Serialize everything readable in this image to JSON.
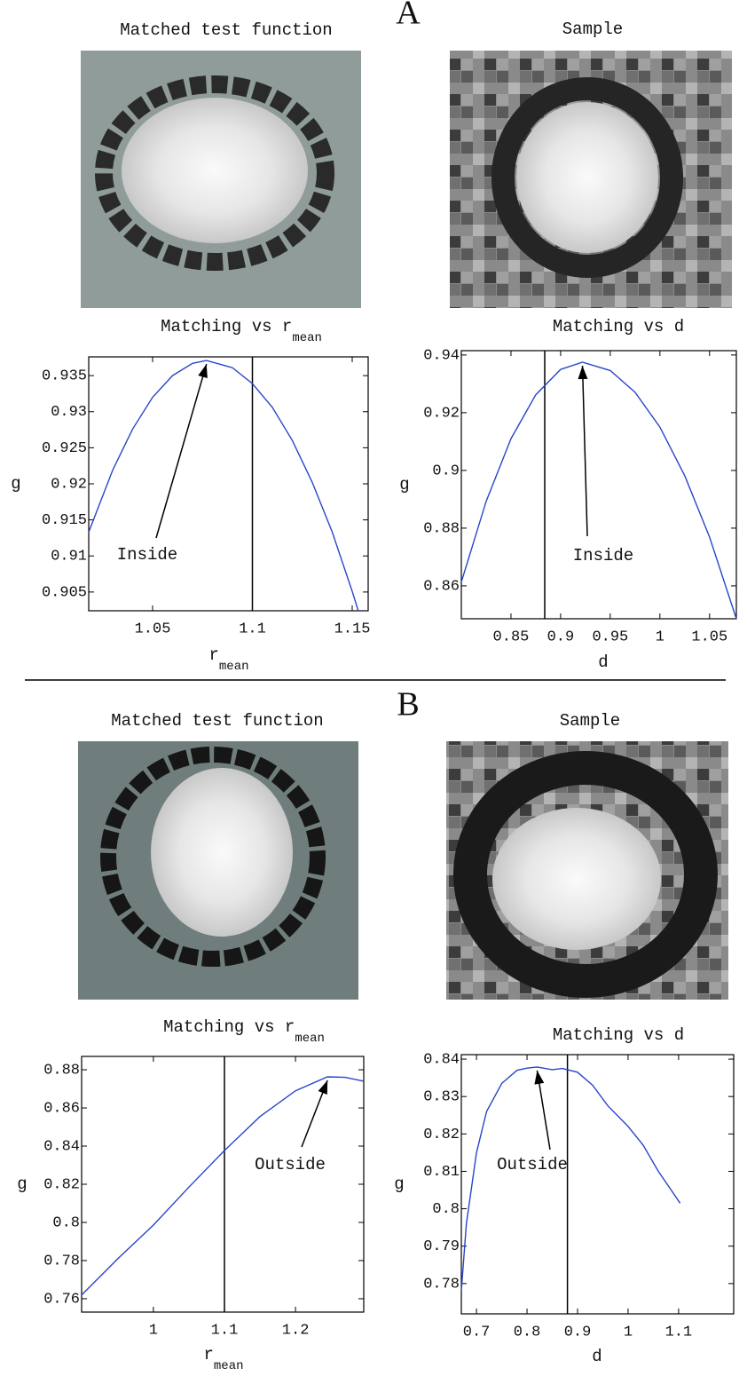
{
  "panels": [
    {
      "label": "A",
      "images": [
        {
          "title": "Matched test function"
        },
        {
          "title": "Sample"
        }
      ]
    },
    {
      "label": "B",
      "images": [
        {
          "title": "Matched test function"
        },
        {
          "title": "Sample"
        }
      ]
    }
  ],
  "chart_data": [
    {
      "type": "line",
      "title": "Matching vs r",
      "title_sub": "mean",
      "xlabel": "r",
      "xlabel_sub": "mean",
      "ylabel": "g",
      "xlim": [
        1.018,
        1.158
      ],
      "ylim": [
        0.9024,
        0.9376
      ],
      "xticks": [
        1.05,
        1.1,
        1.15
      ],
      "yticks": [
        0.905,
        0.91,
        0.915,
        0.92,
        0.925,
        0.93,
        0.935
      ],
      "vline": 1.1,
      "annotation": "Inside",
      "color": "#2a45c8",
      "x": [
        1.018,
        1.03,
        1.04,
        1.05,
        1.06,
        1.07,
        1.077,
        1.09,
        1.1,
        1.11,
        1.12,
        1.13,
        1.14,
        1.15,
        1.153
      ],
      "values": [
        0.9133,
        0.9219,
        0.9276,
        0.932,
        0.935,
        0.9367,
        0.9371,
        0.9361,
        0.9339,
        0.9306,
        0.926,
        0.9202,
        0.9133,
        0.9051,
        0.9024
      ]
    },
    {
      "type": "line",
      "title": "Matching vs d",
      "xlabel": "d",
      "ylabel": "g",
      "xlim": [
        0.8,
        1.077
      ],
      "ylim": [
        0.8486,
        0.9415
      ],
      "xticks": [
        0.85,
        0.9,
        0.95,
        1,
        1.05
      ],
      "yticks": [
        0.86,
        0.88,
        0.9,
        0.92,
        0.94
      ],
      "vline": 0.884,
      "annotation": "Inside",
      "color": "#2a45c8",
      "x": [
        0.8,
        0.825,
        0.85,
        0.875,
        0.9,
        0.922,
        0.95,
        0.975,
        1.0,
        1.025,
        1.05,
        1.077
      ],
      "values": [
        0.8613,
        0.8893,
        0.911,
        0.9262,
        0.935,
        0.9375,
        0.9346,
        0.9271,
        0.915,
        0.8982,
        0.8769,
        0.8486
      ]
    },
    {
      "type": "line",
      "title": "Matching vs r",
      "title_sub": "mean",
      "xlabel": "r",
      "xlabel_sub": "mean",
      "ylabel": "g",
      "xlim": [
        0.899,
        1.296
      ],
      "ylim": [
        0.753,
        0.887
      ],
      "xticks": [
        1,
        1.1,
        1.2
      ],
      "yticks": [
        0.76,
        0.78,
        0.8,
        0.82,
        0.84,
        0.86,
        0.88
      ],
      "vline": 1.1,
      "annotation": "Outside",
      "color": "#2a45c8",
      "x": [
        0.899,
        0.95,
        1.0,
        1.05,
        1.1,
        1.15,
        1.2,
        1.245,
        1.27,
        1.296
      ],
      "values": [
        0.762,
        0.781,
        0.7986,
        0.8185,
        0.8377,
        0.8555,
        0.869,
        0.8763,
        0.876,
        0.874
      ]
    },
    {
      "type": "line",
      "title": "Matching vs d",
      "xlabel": "d",
      "ylabel": "g",
      "xlim": [
        0.67,
        1.209
      ],
      "ylim": [
        0.7719,
        0.8412
      ],
      "xticks": [
        0.7,
        0.8,
        0.9,
        1,
        1.1
      ],
      "yticks": [
        0.78,
        0.79,
        0.8,
        0.81,
        0.82,
        0.83,
        0.84
      ],
      "vline": 0.88,
      "annotation": "Outside",
      "color": "#2a45c8",
      "x": [
        0.67,
        0.68,
        0.7,
        0.72,
        0.75,
        0.78,
        0.8,
        0.82,
        0.85,
        0.87,
        0.9,
        0.93,
        0.96,
        1.0,
        1.03,
        1.06,
        1.103
      ],
      "values": [
        0.7781,
        0.796,
        0.815,
        0.826,
        0.8335,
        0.837,
        0.8376,
        0.8379,
        0.8372,
        0.8375,
        0.8365,
        0.833,
        0.8275,
        0.822,
        0.817,
        0.81,
        0.8015
      ]
    }
  ]
}
